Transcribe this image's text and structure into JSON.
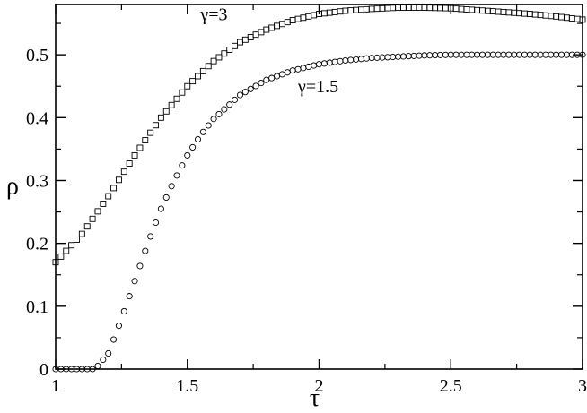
{
  "chart_data": {
    "type": "scatter",
    "title": "",
    "xlabel": "τ",
    "ylabel": "ρ",
    "xlim": [
      1,
      3
    ],
    "ylim": [
      0,
      0.58
    ],
    "xticks": [
      1,
      1.5,
      2,
      2.5,
      3
    ],
    "xtick_labels": [
      "1",
      "1.5",
      "2",
      "2.5",
      "3"
    ],
    "yticks": [
      0,
      0.1,
      0.2,
      0.3,
      0.4,
      0.5
    ],
    "ytick_labels": [
      "0",
      "0.1",
      "0.2",
      "0.3",
      "0.4",
      "0.5"
    ],
    "grid": false,
    "series": [
      {
        "name": "γ=3",
        "marker": "square",
        "x": [
          1.0,
          1.1,
          1.2,
          1.3,
          1.4,
          1.5,
          1.6,
          1.7,
          1.8,
          1.9,
          2.0,
          2.1,
          2.2,
          2.3,
          2.4,
          2.5,
          2.6,
          2.7,
          2.8,
          2.9,
          3.0
        ],
        "y": [
          0.17,
          0.215,
          0.275,
          0.34,
          0.4,
          0.45,
          0.49,
          0.52,
          0.54,
          0.555,
          0.565,
          0.57,
          0.573,
          0.575,
          0.575,
          0.574,
          0.571,
          0.568,
          0.565,
          0.561,
          0.556
        ]
      },
      {
        "name": "γ=1.5",
        "marker": "circle",
        "x": [
          1.0,
          1.05,
          1.1,
          1.15,
          1.2,
          1.25,
          1.3,
          1.35,
          1.4,
          1.45,
          1.5,
          1.55,
          1.6,
          1.7,
          1.8,
          1.9,
          2.0,
          2.1,
          2.2,
          2.3,
          2.4,
          2.5,
          2.6,
          2.7,
          2.8,
          2.9,
          3.0
        ],
        "y": [
          0.0,
          0.0,
          0.0,
          0.0,
          0.025,
          0.08,
          0.14,
          0.2,
          0.255,
          0.3,
          0.34,
          0.372,
          0.398,
          0.436,
          0.46,
          0.475,
          0.485,
          0.491,
          0.495,
          0.497,
          0.499,
          0.5,
          0.5,
          0.5,
          0.5,
          0.5,
          0.5
        ]
      }
    ],
    "annotations": [
      {
        "text": "γ=3",
        "x": 1.55,
        "y": 0.555
      },
      {
        "text": "γ=1.5",
        "x": 1.92,
        "y": 0.44
      }
    ]
  }
}
